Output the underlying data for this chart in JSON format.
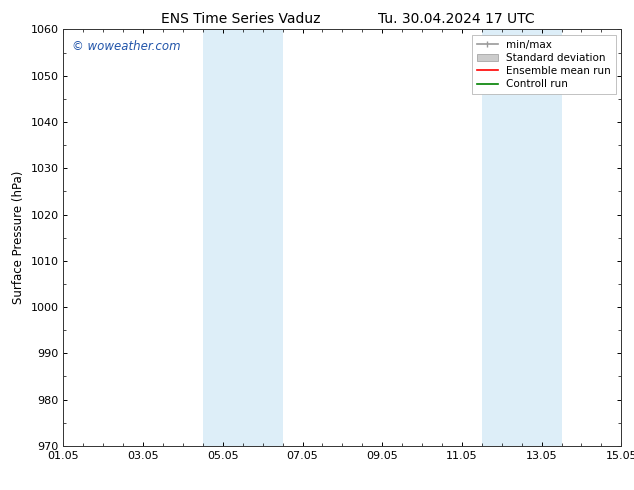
{
  "title": "ENS Time Series Vaduz",
  "title2": "Tu. 30.04.2024 17 UTC",
  "ylabel": "Surface Pressure (hPa)",
  "xlabel": "",
  "ylim": [
    970,
    1060
  ],
  "yticks": [
    970,
    980,
    990,
    1000,
    1010,
    1020,
    1030,
    1040,
    1050,
    1060
  ],
  "xtick_labels": [
    "01.05",
    "03.05",
    "05.05",
    "07.05",
    "09.05",
    "11.05",
    "13.05",
    "15.05"
  ],
  "xtick_positions": [
    0,
    2,
    4,
    6,
    8,
    10,
    12,
    14
  ],
  "xlim": [
    0,
    14
  ],
  "shaded_bands": [
    {
      "x_start": 3.5,
      "x_end": 5.5,
      "color": "#ddeef8"
    },
    {
      "x_start": 10.5,
      "x_end": 12.5,
      "color": "#ddeef8"
    }
  ],
  "legend_labels": [
    "min/max",
    "Standard deviation",
    "Ensemble mean run",
    "Controll run"
  ],
  "minmax_color": "#999999",
  "std_color": "#cccccc",
  "mean_color": "#ff0000",
  "ctrl_color": "#008000",
  "watermark_text": "© woweather.com",
  "watermark_color": "#2255aa",
  "background_color": "#ffffff",
  "plot_bg_color": "#ffffff",
  "spine_color": "#333333",
  "title_fontsize": 10,
  "label_fontsize": 8.5,
  "tick_fontsize": 8,
  "legend_fontsize": 7.5
}
